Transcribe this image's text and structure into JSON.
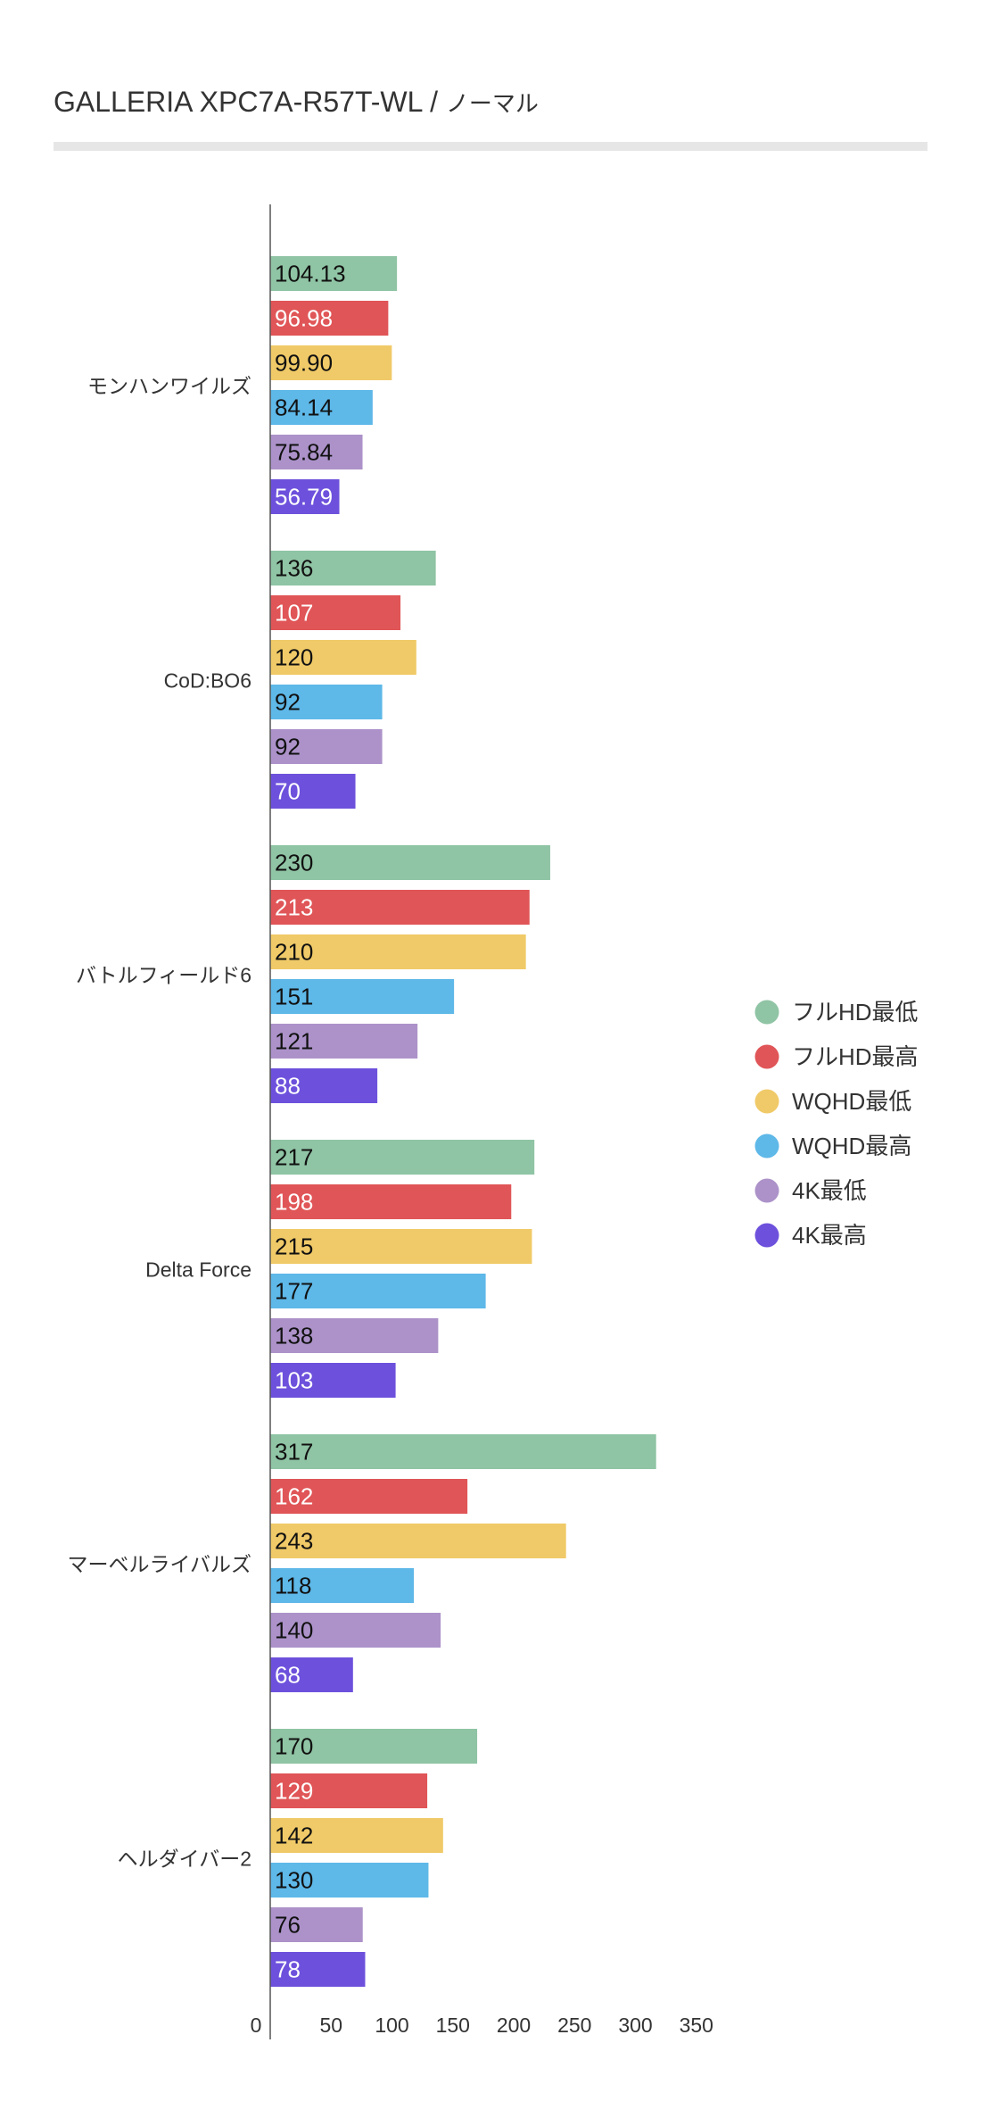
{
  "chart_data": {
    "type": "bar",
    "orientation": "horizontal",
    "title": "GALLERIA XPC7A-R57T-WL",
    "title_separator": "/",
    "subtitle": "ノーマル",
    "xlabel": "",
    "ylabel": "",
    "xlim": [
      0,
      350
    ],
    "x_ticks": [
      0,
      50,
      100,
      150,
      200,
      250,
      300,
      350
    ],
    "x_tick_labels": [
      "0",
      "50",
      "100",
      "150",
      "200",
      "250",
      "300",
      "350"
    ],
    "grid": false,
    "legend_position": "right",
    "categories": [
      "モンハンワイルズ",
      "CoD:BO6",
      "バトルフィールド6",
      "Delta Force",
      "マーベルライバルズ",
      "ヘルダイバー2"
    ],
    "series": [
      {
        "name": "フルHD最低",
        "color": "#8fc4a4",
        "text_color": "#111111",
        "values": [
          104.13,
          136,
          230,
          217,
          317,
          170
        ],
        "labels": [
          "104.13",
          "136",
          "230",
          "217",
          "317",
          "170"
        ]
      },
      {
        "name": "フルHD最高",
        "color": "#e05557",
        "text_color": "#ffffff",
        "values": [
          96.98,
          107,
          213,
          198,
          162,
          129
        ],
        "labels": [
          "96.98",
          "107",
          "213",
          "198",
          "162",
          "129"
        ]
      },
      {
        "name": "WQHD最低",
        "color": "#f0ca68",
        "text_color": "#111111",
        "values": [
          99.9,
          120,
          210,
          215,
          243,
          142
        ],
        "labels": [
          "99.90",
          "120",
          "210",
          "215",
          "243",
          "142"
        ]
      },
      {
        "name": "WQHD最高",
        "color": "#5eb8e8",
        "text_color": "#111111",
        "values": [
          84.14,
          92,
          151,
          177,
          118,
          130
        ],
        "labels": [
          "84.14",
          "92",
          "151",
          "177",
          "118",
          "130"
        ]
      },
      {
        "name": "4K最低",
        "color": "#ac92c9",
        "text_color": "#111111",
        "values": [
          75.84,
          92,
          121,
          138,
          140,
          76
        ],
        "labels": [
          "75.84",
          "92",
          "121",
          "138",
          "140",
          "76"
        ]
      },
      {
        "name": "4K最高",
        "color": "#6d51dc",
        "text_color": "#ffffff",
        "values": [
          56.79,
          70,
          88,
          103,
          68,
          78
        ],
        "labels": [
          "56.79",
          "70",
          "88",
          "103",
          "68",
          "78"
        ]
      }
    ]
  }
}
